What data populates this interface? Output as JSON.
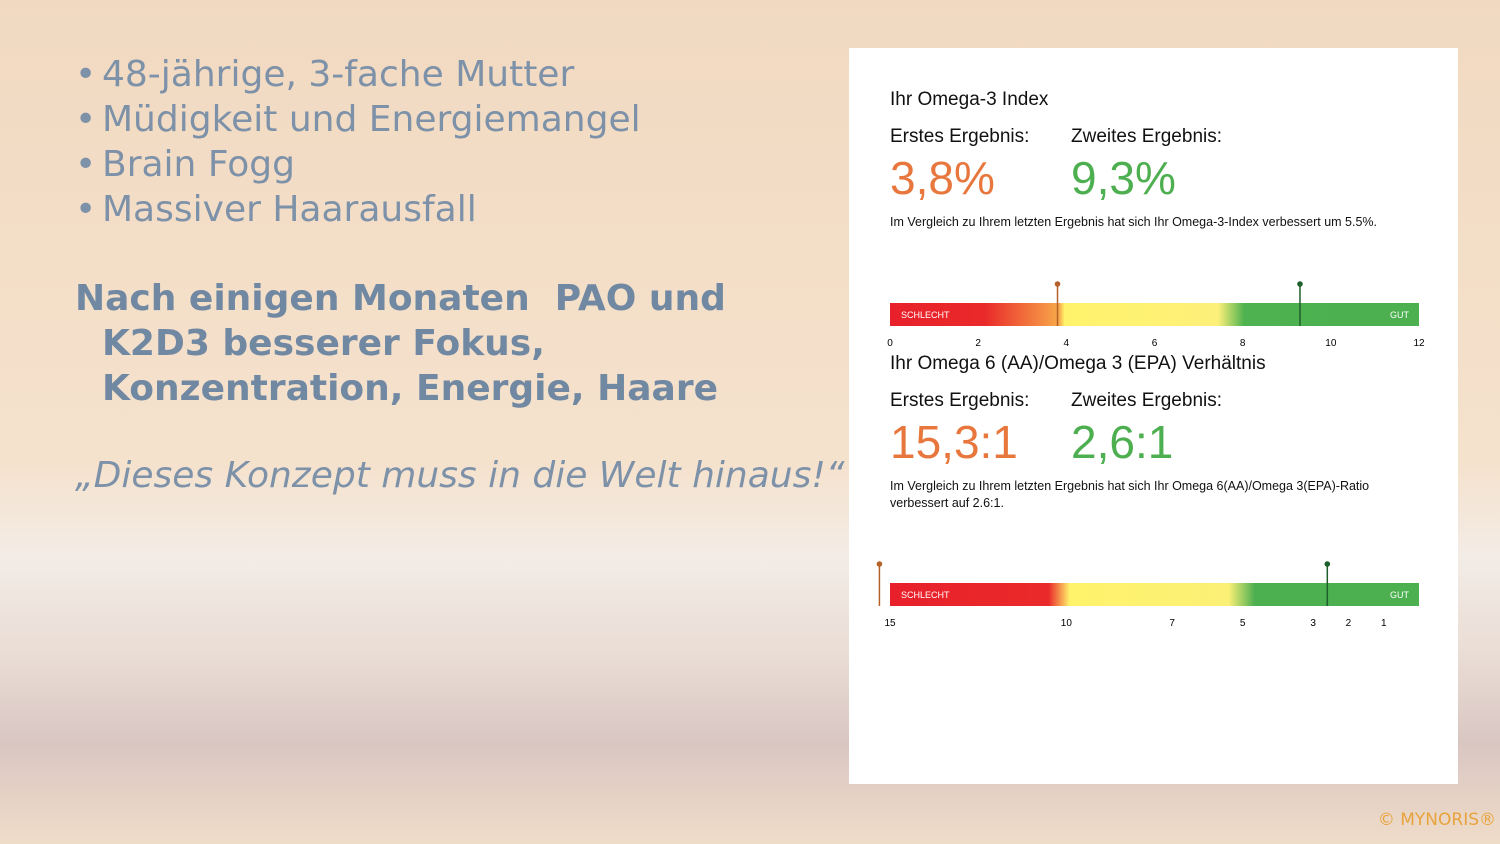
{
  "bullets": [
    "48-jährige, 3-fache Mutter",
    "Müdigkeit und Energiemangel",
    "Brain Fogg",
    "Massiver Haarausfall"
  ],
  "heading": "Nach einigen Monaten  PAO und K2D3 besserer Fokus, Konzentration, Energie, Haare",
  "quote": "„Dieses Konzept muss in die Welt hinaus!“",
  "report": {
    "sections": [
      {
        "title": "Ihr Omega-3 Index",
        "first_label": "Erstes Ergebnis:",
        "second_label": "Zweites Ergebnis:",
        "first_value": "3,8%",
        "second_value": "9,3%",
        "note": "Im Vergleich zu Ihrem letzten Ergebnis hat sich Ihr Omega-3-Index verbessert um 5.5%.",
        "scale": {
          "low_label": "SCHLECHT",
          "high_label": "GUT",
          "lim": [
            0,
            12
          ],
          "ticks": [
            0,
            2,
            4,
            6,
            8,
            10,
            12
          ],
          "first_marker": 3.8,
          "second_marker": 9.3
        }
      },
      {
        "title": "Ihr Omega 6 (AA)/Omega 3 (EPA) Verhältnis",
        "first_label": "Erstes Ergebnis:",
        "second_label": "Zweites Ergebnis:",
        "first_value": "15,3:1",
        "second_value": "2,6:1",
        "note": "Im Vergleich zu Ihrem letzten Ergebnis hat sich Ihr Omega 6(AA)/Omega 3(EPA)-Ratio verbessert auf 2.6:1.",
        "scale": {
          "low_label": "SCHLECHT",
          "high_label": "GUT",
          "lim": [
            15,
            0
          ],
          "ticks": [
            15,
            10,
            7,
            5,
            3,
            2,
            1
          ],
          "first_marker": 15.3,
          "second_marker": 2.6
        }
      }
    ]
  },
  "copyright": "© MYNORIS®"
}
